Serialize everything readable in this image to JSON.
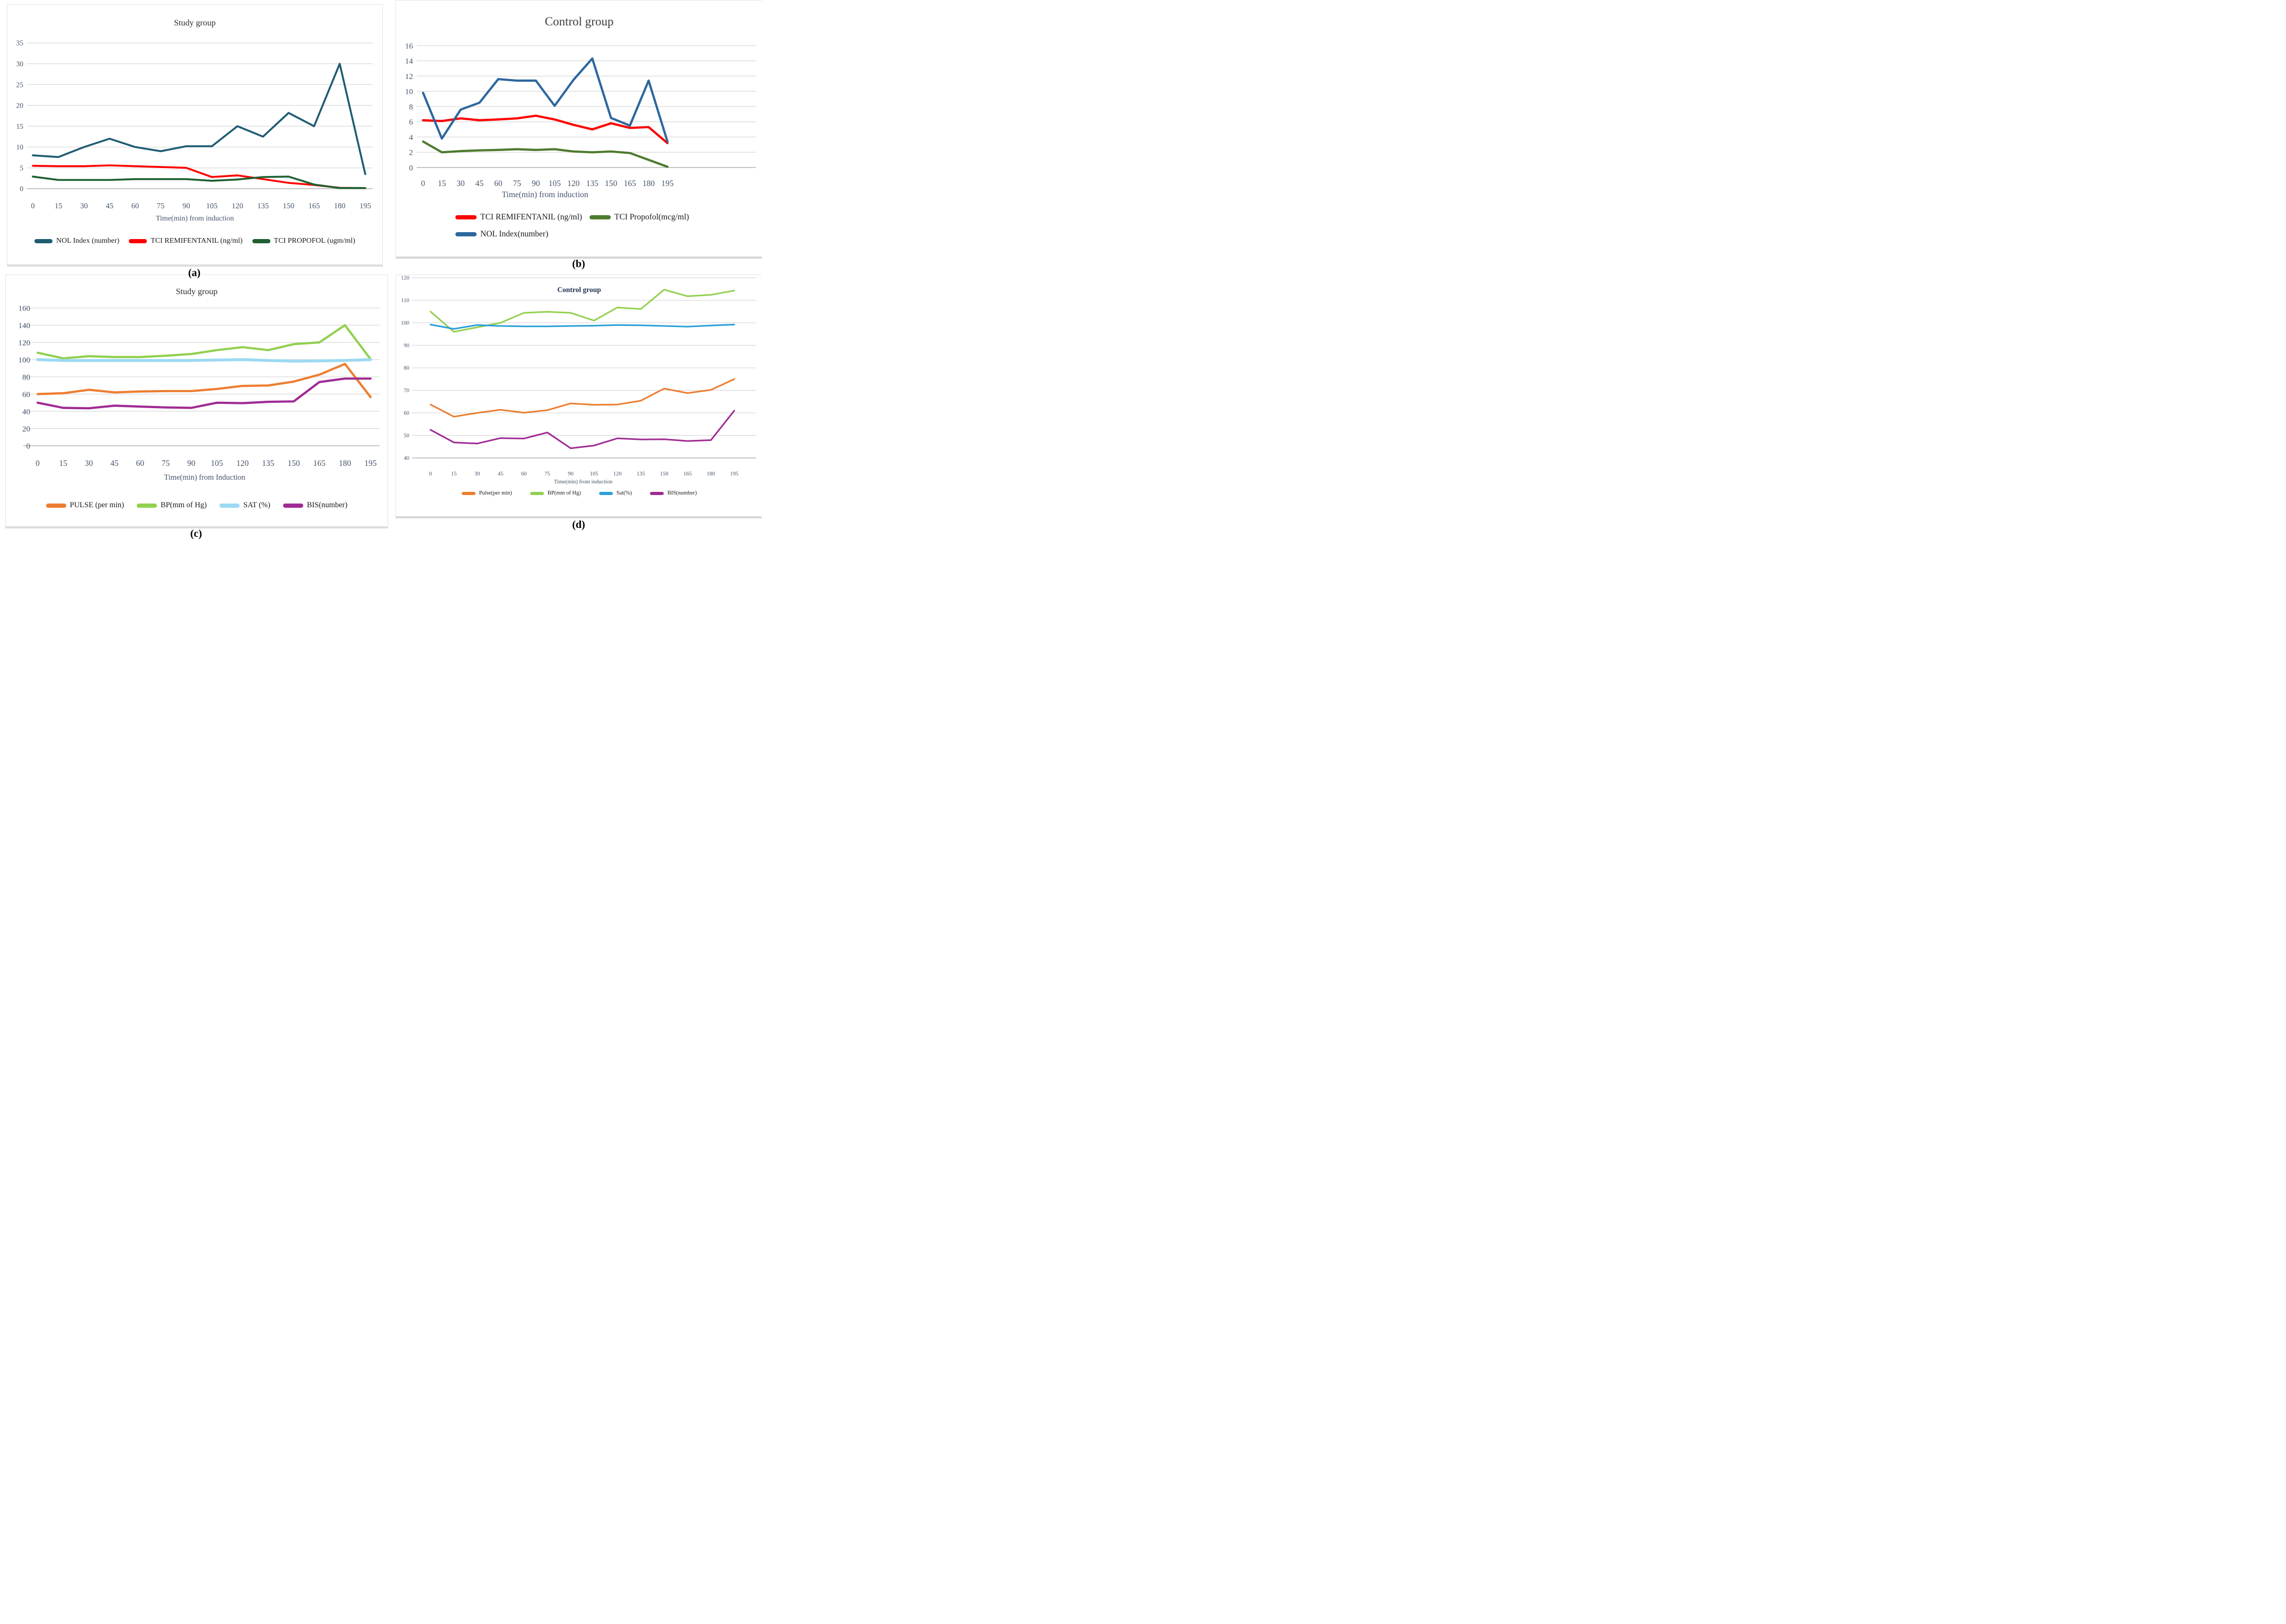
{
  "captions": [
    "(a)",
    "(b)",
    "(c)",
    "(d)"
  ],
  "chart_data": [
    {
      "type": "line",
      "title": "Study group",
      "xlabel": "Time(min) from induction",
      "caption": "(a)",
      "categories": [
        0,
        15,
        30,
        45,
        60,
        75,
        90,
        105,
        120,
        135,
        150,
        165,
        180,
        195
      ],
      "y_axis": {
        "min": 0,
        "max": 35,
        "step": 5
      },
      "grid": "horizontal",
      "legend_position": "bottom",
      "series": [
        {
          "name": "NOL Index (number)",
          "color": "#1F5C73",
          "values": [
            8,
            7.6,
            10,
            12,
            10,
            9,
            10.2,
            10.2,
            15,
            12.5,
            18.2,
            15,
            30,
            3.5
          ]
        },
        {
          "name": "TCI REMIFENTANIL (ng/ml)",
          "color": "#FE0000",
          "values": [
            5.5,
            5.4,
            5.4,
            5.6,
            5.4,
            5.2,
            5.0,
            2.8,
            3.2,
            2.3,
            1.4,
            0.9,
            0.2,
            0.15
          ]
        },
        {
          "name": "TCI PROPOFOL (ugm/ml)",
          "color": "#1F6032",
          "values": [
            2.9,
            2.1,
            2.1,
            2.1,
            2.3,
            2.3,
            2.3,
            1.9,
            2.2,
            2.8,
            2.9,
            1.0,
            0.15,
            0.15
          ]
        }
      ]
    },
    {
      "type": "line",
      "title": "Control group",
      "xlabel": "Time(min)  from induction",
      "caption": "(b)",
      "categories": [
        0,
        15,
        30,
        45,
        60,
        75,
        90,
        105,
        120,
        135,
        150,
        165,
        180,
        195
      ],
      "y_axis": {
        "min": 0,
        "max": 16,
        "step": 2
      },
      "grid": "horizontal",
      "legend_position": "bottom",
      "series": [
        {
          "name": "TCI REMIFENTANIL (ng/ml)",
          "color": "#FE0000",
          "values": [
            6.2,
            6.1,
            6.45,
            6.2,
            6.3,
            6.45,
            6.8,
            6.3,
            5.6,
            5.0,
            5.8,
            5.2,
            5.3,
            3.2
          ]
        },
        {
          "name": "TCI Propofol(mcg/ml)",
          "color": "#4E7B2F",
          "values": [
            3.4,
            2.0,
            2.15,
            2.25,
            2.3,
            2.4,
            2.3,
            2.4,
            2.1,
            2.0,
            2.1,
            1.9,
            1.0,
            0.1
          ]
        },
        {
          "name": "NOL Index(number)",
          "color": "#2C679E",
          "values": [
            9.8,
            3.8,
            7.6,
            8.5,
            11.6,
            11.4,
            11.4,
            8.1,
            11.5,
            14.3,
            6.5,
            5.5,
            11.4,
            3.4
          ]
        }
      ]
    },
    {
      "type": "line",
      "title": "Study group",
      "xlabel": "Time(min) from Induction",
      "caption": "(c)",
      "categories": [
        0,
        15,
        30,
        45,
        60,
        75,
        90,
        105,
        120,
        135,
        150,
        165,
        180,
        195
      ],
      "y_axis": {
        "min": 0,
        "max": 160,
        "step": 20
      },
      "grid": "horizontal",
      "legend_position": "bottom",
      "series": [
        {
          "name": "PULSE (per min)",
          "color": "#ED7D31",
          "values": [
            60,
            61,
            65,
            62,
            63,
            63.5,
            63.5,
            66,
            69.5,
            70,
            74.5,
            82.5,
            95,
            56.5
          ]
        },
        {
          "name": "BP(mm of Hg)",
          "color": "#92D050",
          "values": [
            108,
            101.5,
            104,
            103,
            103,
            104.5,
            106.5,
            111,
            114.5,
            111,
            118,
            120,
            140,
            100.5
          ]
        },
        {
          "name": "SAT (%)",
          "color": "#9DD9F2",
          "values": [
            100,
            99,
            99,
            99,
            99,
            99,
            99,
            99.5,
            100,
            99,
            98.2,
            98.5,
            99,
            100
          ]
        },
        {
          "name": "BIS(number)",
          "color": "#A02B93",
          "values": [
            50,
            44,
            43.5,
            46.5,
            45.5,
            44.5,
            44,
            50,
            49.5,
            51,
            51.5,
            74,
            78,
            78
          ]
        }
      ]
    },
    {
      "type": "line",
      "title": "Control group",
      "xlabel": "Time(min)  from induction",
      "caption": "(d)",
      "categories": [
        0,
        15,
        30,
        45,
        60,
        75,
        90,
        105,
        120,
        135,
        150,
        165,
        180,
        195
      ],
      "y_axis": {
        "min": 40,
        "max": 120,
        "step": 10
      },
      "grid": "horizontal",
      "legend_position": "bottom",
      "series": [
        {
          "name": "Pulse(per min)",
          "color": "#ED7D31",
          "values": [
            63.7,
            58.3,
            60,
            61.4,
            60.1,
            61.2,
            64.2,
            63.6,
            63.7,
            65.4,
            70.8,
            68.8,
            70.2,
            75
          ]
        },
        {
          "name": "BP(mm of Hg)",
          "color": "#92D050",
          "values": [
            105,
            96,
            98,
            100,
            104.4,
            104.9,
            104.4,
            101,
            106.8,
            106.1,
            114.7,
            111.8,
            112.4,
            114.3
          ]
        },
        {
          "name": "Sat(%)",
          "color": "#2BA0D8",
          "values": [
            99.2,
            97.3,
            99,
            98.6,
            98.4,
            98.4,
            98.6,
            98.7,
            99,
            98.9,
            98.6,
            98.3,
            98.8,
            99.2
          ]
        },
        {
          "name": "BIS(number)",
          "color": "#A02B93",
          "values": [
            52.5,
            46.9,
            46.4,
            48.8,
            48.6,
            51.3,
            44.3,
            45.5,
            48.7,
            48.2,
            48.3,
            47.5,
            47.9,
            61
          ]
        }
      ]
    }
  ]
}
